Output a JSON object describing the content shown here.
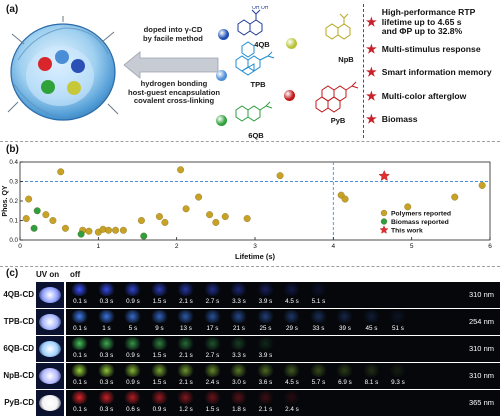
{
  "panel_a": {
    "label": "(a)",
    "method_top": "doped into γ-CD\nby facile method",
    "method_bottom": "hydrogen bonding\nhost-guest encapsulation\ncovalent cross-linking",
    "molecules": [
      {
        "name": "4QB",
        "dot_color": "#1f4fb5"
      },
      {
        "name": "NpB",
        "dot_color": "#b7c437"
      },
      {
        "name": "TPB",
        "dot_color": "#4f8fd6"
      },
      {
        "name": "PyB",
        "dot_color": "#c01818"
      },
      {
        "name": "6QB",
        "dot_color": "#2fa23a"
      }
    ],
    "features": [
      "High-performance RTP\nlifetime up to 4.65 s\nand ΦP up to 32.8%",
      "Multi-stimulus response",
      "Smart information memory",
      "Multi-color afterglow",
      "Biomass"
    ]
  },
  "panel_b": {
    "label": "(b)",
    "chart_data": {
      "type": "scatter",
      "xlabel": "Lifetime (s)",
      "ylabel": "Phos. QY",
      "xlim": [
        0,
        6
      ],
      "ylim": [
        0,
        0.4
      ],
      "xticks": [
        "0",
        "1",
        "2",
        "3",
        "4",
        "5",
        "6"
      ],
      "yticks": [
        "0.0",
        "0.1",
        "0.2",
        "0.3",
        "0.4"
      ],
      "reference_lines": {
        "y": 0.3,
        "x": 4.0
      },
      "legend_position": "bottom-right",
      "colors": {
        "polymers": "#c8a227",
        "biomass": "#2e9e3e",
        "this_work": "#e03030",
        "ref_line": "#4a90d9"
      },
      "series": [
        {
          "name": "Polymers reported",
          "marker": "circle",
          "color": "#c8a227",
          "points": [
            [
              0.08,
              0.11
            ],
            [
              0.11,
              0.21
            ],
            [
              0.33,
              0.13
            ],
            [
              0.42,
              0.1
            ],
            [
              0.52,
              0.35
            ],
            [
              0.58,
              0.06
            ],
            [
              0.8,
              0.05
            ],
            [
              0.88,
              0.045
            ],
            [
              1.0,
              0.04
            ],
            [
              1.06,
              0.055
            ],
            [
              1.13,
              0.05
            ],
            [
              1.22,
              0.05
            ],
            [
              1.32,
              0.05
            ],
            [
              1.55,
              0.1
            ],
            [
              1.78,
              0.12
            ],
            [
              1.85,
              0.09
            ],
            [
              2.05,
              0.36
            ],
            [
              2.12,
              0.16
            ],
            [
              2.28,
              0.22
            ],
            [
              2.42,
              0.13
            ],
            [
              2.5,
              0.09
            ],
            [
              2.62,
              0.12
            ],
            [
              2.9,
              0.11
            ],
            [
              3.32,
              0.33
            ],
            [
              4.1,
              0.23
            ],
            [
              4.15,
              0.21
            ],
            [
              4.95,
              0.17
            ],
            [
              5.55,
              0.22
            ],
            [
              5.9,
              0.28
            ]
          ]
        },
        {
          "name": "Biomass reported",
          "marker": "circle",
          "color": "#2e9e3e",
          "points": [
            [
              0.18,
              0.06
            ],
            [
              0.22,
              0.15
            ],
            [
              0.78,
              0.03
            ],
            [
              1.58,
              0.02
            ]
          ]
        },
        {
          "name": "This work",
          "marker": "star",
          "color": "#e03030",
          "points": [
            [
              4.65,
              0.328
            ]
          ]
        }
      ]
    }
  },
  "panel_c": {
    "label": "(c)",
    "head_uv": "UV on",
    "head_off": "off",
    "rows": [
      {
        "name": "4QB-CD",
        "nm": "310 nm",
        "uv_color": "#8fa0ff",
        "glow": "#3a52ff",
        "times": [
          "0.1 s",
          "0.3 s",
          "0.9 s",
          "1.5 s",
          "2.1 s",
          "2.7 s",
          "3.3 s",
          "3.9 s",
          "4.5 s",
          "5.1 s"
        ]
      },
      {
        "name": "TPB-CD",
        "nm": "254 nm",
        "uv_color": "#a6b6ff",
        "glow": "#3f7df0",
        "times": [
          "0.1 s",
          "1 s",
          "5 s",
          "9 s",
          "13 s",
          "17 s",
          "21 s",
          "25 s",
          "29 s",
          "33 s",
          "39 s",
          "45 s",
          "51 s"
        ]
      },
      {
        "name": "6QB-CD",
        "nm": "310 nm",
        "uv_color": "#9fd0ff",
        "glow": "#45c25a",
        "times": [
          "0.1 s",
          "0.3 s",
          "0.9 s",
          "1.5 s",
          "2.1 s",
          "2.7 s",
          "3.3 s",
          "3.9 s"
        ]
      },
      {
        "name": "NpB-CD",
        "nm": "310 nm",
        "uv_color": "#b2b8ff",
        "glow": "#9ad43a",
        "times": [
          "0.1 s",
          "0.3 s",
          "0.9 s",
          "1.5 s",
          "2.1 s",
          "2.4 s",
          "3.0 s",
          "3.6 s",
          "4.5 s",
          "5.7 s",
          "6.9 s",
          "8.1 s",
          "9.3 s"
        ]
      },
      {
        "name": "PyB-CD",
        "nm": "365 nm",
        "uv_color": "#f4f4f4",
        "glow": "#e0242a",
        "times": [
          "0.1 s",
          "0.3 s",
          "0.6 s",
          "0.9 s",
          "1.2 s",
          "1.5 s",
          "1.8 s",
          "2.1 s",
          "2.4 s"
        ]
      }
    ]
  }
}
